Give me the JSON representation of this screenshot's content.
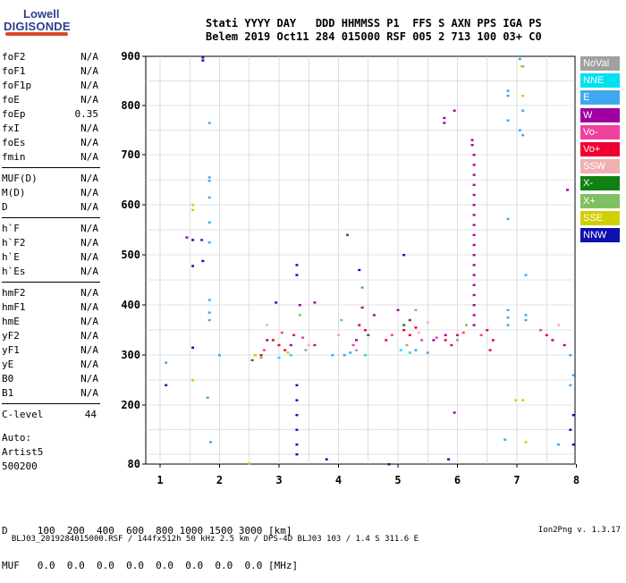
{
  "logo": {
    "line1": "Lowell",
    "line2": "DIGISONDE"
  },
  "header": {
    "line1": "Stati YYYY DAY   DDD HHMMSS P1  FFS S AXN PPS IGA PS",
    "line2": "Belem 2019 Oct11 284 015000 RSF 005 2 713 100 03+ C0"
  },
  "params": {
    "group1": [
      {
        "name": "foF2",
        "value": "N/A"
      },
      {
        "name": "foF1",
        "value": "N/A"
      },
      {
        "name": "foF1p",
        "value": "N/A"
      },
      {
        "name": "foE",
        "value": "N/A"
      },
      {
        "name": "foEp",
        "value": "0.35"
      },
      {
        "name": "fxI",
        "value": "N/A"
      },
      {
        "name": "foEs",
        "value": "N/A"
      },
      {
        "name": "fmin",
        "value": "N/A"
      }
    ],
    "group2": [
      {
        "name": "MUF(D)",
        "value": "N/A"
      },
      {
        "name": "M(D)",
        "value": "N/A"
      },
      {
        "name": "D",
        "value": "N/A"
      }
    ],
    "group3": [
      {
        "name": "h`F",
        "value": "N/A"
      },
      {
        "name": "h`F2",
        "value": "N/A"
      },
      {
        "name": "h`E",
        "value": "N/A"
      },
      {
        "name": "h`Es",
        "value": "N/A"
      }
    ],
    "group4": [
      {
        "name": "hmF2",
        "value": "N/A"
      },
      {
        "name": "hmF1",
        "value": "N/A"
      },
      {
        "name": "hmE",
        "value": "N/A"
      },
      {
        "name": "yF2",
        "value": "N/A"
      },
      {
        "name": "yF1",
        "value": "N/A"
      },
      {
        "name": "yE",
        "value": "N/A"
      },
      {
        "name": "B0",
        "value": "N/A"
      },
      {
        "name": "B1",
        "value": "N/A"
      }
    ],
    "clevel": {
      "name": "C-level",
      "value": "44"
    }
  },
  "auto": {
    "line1": "Auto:",
    "line2": "Artist5",
    "line3": "500200"
  },
  "dmuf": {
    "d_line": "D     100  200  400  600  800 1000 1500 3000 [km]",
    "muf_line": "MUF   0.0  0.0  0.0  0.0  0.0  0.0  0.0  0.0 [MHz]"
  },
  "footer": {
    "left": "BLJ03_2019284015000.RSF / 144fx512h 50 kHz 2.5 km / DPS-4D BLJ03 103 / 1.4 S 311.6 E",
    "right": "Ion2Png v. 1.3.17"
  },
  "legend": [
    {
      "label": "NoVal",
      "color": "#a0a0a0"
    },
    {
      "label": "NNE",
      "color": "#00e0f0"
    },
    {
      "label": "E",
      "color": "#3fa8f0"
    },
    {
      "label": "W",
      "color": "#a000a0"
    },
    {
      "label": "Vo-",
      "color": "#f040a0"
    },
    {
      "label": "Vo+",
      "color": "#f00030"
    },
    {
      "label": "SSW",
      "color": "#f0b0b0"
    },
    {
      "label": "X-",
      "color": "#108010"
    },
    {
      "label": "X+",
      "color": "#80c060"
    },
    {
      "label": "SSE",
      "color": "#d0d000"
    },
    {
      "label": "NNW",
      "color": "#1010b0"
    }
  ],
  "chart_data": {
    "type": "scatter",
    "x_ticks": [
      "1",
      "2",
      "3",
      "4",
      "5",
      "6",
      "7",
      "8"
    ],
    "y_ticks": [
      "80",
      "200",
      "300",
      "400",
      "500",
      "600",
      "700",
      "800",
      "900"
    ],
    "xlim": [
      0.8,
      8
    ],
    "ylim": [
      80,
      900
    ],
    "y_scale": "ionogram (compressed low heights)",
    "grid": true,
    "legend_position": "right",
    "series": [
      {
        "name": "NNW",
        "points": [
          [
            1.72,
            898
          ],
          [
            1.72,
            892
          ],
          [
            1.72,
            488
          ],
          [
            1.55,
            478
          ],
          [
            1.55,
            530
          ],
          [
            3.3,
            480
          ],
          [
            3.3,
            460
          ],
          [
            3.3,
            240
          ],
          [
            3.3,
            210
          ],
          [
            3.3,
            180
          ],
          [
            3.3,
            150
          ],
          [
            3.3,
            120
          ],
          [
            3.3,
            100
          ],
          [
            1.1,
            240
          ],
          [
            1.55,
            315
          ],
          [
            4.85,
            80
          ],
          [
            5.85,
            90
          ],
          [
            3.8,
            90
          ],
          [
            4.35,
            470
          ],
          [
            2.95,
            405
          ],
          [
            5.1,
            500
          ],
          [
            7.95,
            120
          ],
          [
            7.9,
            150
          ],
          [
            7.95,
            180
          ]
        ]
      },
      {
        "name": "E",
        "points": [
          [
            1.83,
            765
          ],
          [
            1.83,
            655
          ],
          [
            1.83,
            648
          ],
          [
            1.83,
            615
          ],
          [
            1.83,
            565
          ],
          [
            1.83,
            525
          ],
          [
            1.83,
            410
          ],
          [
            1.83,
            385
          ],
          [
            1.83,
            370
          ],
          [
            1.8,
            215
          ],
          [
            1.85,
            125
          ],
          [
            1.1,
            285
          ],
          [
            2.0,
            300
          ],
          [
            4.4,
            435
          ],
          [
            6.85,
            830
          ],
          [
            6.85,
            820
          ],
          [
            6.85,
            770
          ],
          [
            6.85,
            572
          ],
          [
            6.85,
            390
          ],
          [
            6.85,
            375
          ],
          [
            6.85,
            360
          ],
          [
            7.05,
            895
          ],
          [
            7.1,
            880
          ],
          [
            7.1,
            790
          ],
          [
            7.1,
            740
          ],
          [
            7.05,
            750
          ],
          [
            7.15,
            460
          ],
          [
            7.15,
            380
          ],
          [
            7.15,
            370
          ],
          [
            6.8,
            130
          ],
          [
            7.7,
            120
          ],
          [
            7.9,
            240
          ],
          [
            7.95,
            260
          ],
          [
            7.9,
            300
          ],
          [
            4.2,
            305
          ],
          [
            4.1,
            300
          ],
          [
            5.3,
            310
          ],
          [
            5.5,
            305
          ],
          [
            3.9,
            300
          ]
        ]
      },
      {
        "name": "W",
        "points": [
          [
            1.45,
            535
          ],
          [
            1.7,
            530
          ],
          [
            5.78,
            775
          ],
          [
            5.78,
            765
          ],
          [
            5.95,
            790
          ],
          [
            6.25,
            730
          ],
          [
            6.25,
            720
          ],
          [
            6.28,
            700
          ],
          [
            6.28,
            680
          ],
          [
            6.28,
            660
          ],
          [
            6.28,
            640
          ],
          [
            6.28,
            620
          ],
          [
            6.28,
            600
          ],
          [
            6.28,
            580
          ],
          [
            6.28,
            560
          ],
          [
            6.28,
            540
          ],
          [
            6.28,
            520
          ],
          [
            6.28,
            500
          ],
          [
            6.28,
            480
          ],
          [
            6.28,
            460
          ],
          [
            6.28,
            440
          ],
          [
            6.28,
            420
          ],
          [
            6.28,
            400
          ],
          [
            6.28,
            380
          ],
          [
            6.28,
            360
          ],
          [
            7.85,
            630
          ],
          [
            3.35,
            400
          ],
          [
            3.6,
            405
          ],
          [
            4.4,
            395
          ],
          [
            4.6,
            380
          ],
          [
            5.0,
            390
          ],
          [
            5.2,
            370
          ],
          [
            7.6,
            330
          ],
          [
            7.8,
            320
          ],
          [
            2.8,
            330
          ],
          [
            3.2,
            320
          ],
          [
            4.3,
            330
          ],
          [
            5.6,
            330
          ],
          [
            5.8,
            340
          ],
          [
            5.95,
            185
          ]
        ]
      },
      {
        "name": "Vo+",
        "points": [
          [
            2.9,
            330
          ],
          [
            3.0,
            320
          ],
          [
            3.1,
            310
          ],
          [
            3.25,
            340
          ],
          [
            4.35,
            360
          ],
          [
            4.45,
            350
          ],
          [
            5.1,
            350
          ],
          [
            5.2,
            340
          ],
          [
            5.3,
            355
          ],
          [
            5.8,
            330
          ],
          [
            5.9,
            320
          ],
          [
            6.0,
            340
          ],
          [
            6.5,
            350
          ],
          [
            6.6,
            330
          ],
          [
            6.55,
            310
          ],
          [
            7.5,
            340
          ],
          [
            2.7,
            300
          ],
          [
            3.6,
            320
          ],
          [
            4.8,
            330
          ]
        ]
      },
      {
        "name": "Vo-",
        "points": [
          [
            2.6,
            300
          ],
          [
            2.75,
            310
          ],
          [
            3.05,
            345
          ],
          [
            3.4,
            335
          ],
          [
            4.25,
            320
          ],
          [
            4.9,
            340
          ],
          [
            5.4,
            330
          ],
          [
            5.65,
            335
          ],
          [
            6.1,
            345
          ],
          [
            6.4,
            340
          ],
          [
            7.4,
            350
          ]
        ]
      },
      {
        "name": "X-",
        "points": [
          [
            4.15,
            540
          ],
          [
            5.1,
            360
          ],
          [
            4.5,
            340
          ],
          [
            2.55,
            290
          ]
        ]
      },
      {
        "name": "X+",
        "points": [
          [
            3.35,
            380
          ],
          [
            4.05,
            370
          ],
          [
            5.3,
            390
          ],
          [
            6.15,
            360
          ],
          [
            2.7,
            295
          ]
        ]
      },
      {
        "name": "SSE",
        "points": [
          [
            1.55,
            600
          ],
          [
            1.55,
            590
          ],
          [
            1.55,
            250
          ],
          [
            2.5,
            82
          ],
          [
            6.98,
            210
          ],
          [
            7.1,
            210
          ],
          [
            7.08,
            880
          ],
          [
            7.1,
            820
          ],
          [
            7.15,
            125
          ],
          [
            2.6,
            300
          ],
          [
            3.15,
            305
          ]
        ]
      },
      {
        "name": "NNE",
        "points": [
          [
            3.2,
            300
          ],
          [
            3.0,
            295
          ],
          [
            4.45,
            300
          ],
          [
            5.2,
            305
          ],
          [
            5.05,
            310
          ]
        ]
      },
      {
        "name": "SSW",
        "points": [
          [
            2.8,
            360
          ],
          [
            3.5,
            320
          ],
          [
            4.0,
            340
          ],
          [
            5.35,
            345
          ],
          [
            7.7,
            360
          ],
          [
            5.5,
            365
          ]
        ]
      },
      {
        "name": "NoVal",
        "points": [
          [
            3.45,
            310
          ],
          [
            4.3,
            310
          ],
          [
            5.15,
            320
          ],
          [
            6.0,
            330
          ]
        ]
      }
    ]
  }
}
